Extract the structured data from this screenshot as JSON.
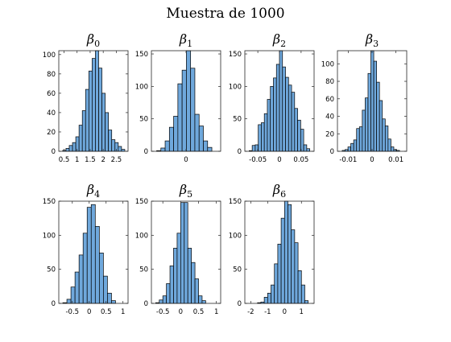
{
  "figure": {
    "title": "Muestra de 1000"
  },
  "style": {
    "bar_fill": "#6fa8dc",
    "bar_edge": "#000000"
  },
  "chart_data": [
    {
      "type": "bar",
      "title": "β0",
      "title_symbol": "β",
      "title_subscript": "0",
      "xlabel": "",
      "ylabel": "",
      "xlim": [
        0.3,
        2.95
      ],
      "ylim": [
        0,
        104
      ],
      "xticks": [
        0.5,
        1,
        1.5,
        2,
        2.5
      ],
      "xtick_labels": [
        "0.5",
        "1",
        "1.5",
        "2",
        "2.5"
      ],
      "yticks": [
        0,
        20,
        40,
        60,
        80,
        100
      ],
      "ytick_labels": [
        "0",
        "20",
        "40",
        "60",
        "80",
        "100"
      ],
      "bin_edges": [
        0.45,
        0.575,
        0.7,
        0.825,
        0.95,
        1.075,
        1.2,
        1.325,
        1.45,
        1.575,
        1.7,
        1.825,
        1.95,
        2.075,
        2.2,
        2.325,
        2.45,
        2.575,
        2.7,
        2.825
      ],
      "values": [
        1,
        3,
        6,
        9,
        15,
        27,
        42,
        64,
        83,
        96,
        104,
        86,
        60,
        40,
        22,
        12,
        9,
        5,
        2
      ]
    },
    {
      "type": "bar",
      "title": "β1",
      "title_symbol": "β",
      "title_subscript": "1",
      "xlabel": "",
      "ylabel": "",
      "xlim": [
        -0.53,
        0.53
      ],
      "ylim": [
        0,
        155
      ],
      "xticks": [
        0
      ],
      "xtick_labels": [
        "0"
      ],
      "yticks": [
        0,
        50,
        100,
        150
      ],
      "ytick_labels": [
        "0",
        "50",
        "100",
        "150"
      ],
      "bin_edges": [
        -0.45,
        -0.385,
        -0.32,
        -0.255,
        -0.19,
        -0.125,
        -0.06,
        0.005,
        0.07,
        0.135,
        0.2,
        0.265,
        0.33,
        0.395
      ],
      "values": [
        1,
        5,
        16,
        37,
        54,
        104,
        125,
        155,
        128,
        57,
        39,
        16,
        6
      ]
    },
    {
      "type": "bar",
      "title": "β2",
      "title_symbol": "β",
      "title_subscript": "2",
      "xlabel": "",
      "ylabel": "",
      "xlim": [
        -0.08,
        0.08
      ],
      "ylim": [
        0,
        155
      ],
      "xticks": [
        -0.05,
        0,
        0.05
      ],
      "xtick_labels": [
        "-0.05",
        "0",
        "0.05"
      ],
      "yticks": [
        0,
        50,
        100,
        150
      ],
      "ytick_labels": [
        "0",
        "50",
        "100",
        "150"
      ],
      "bin_edges": [
        -0.07,
        -0.063,
        -0.056,
        -0.049,
        -0.042,
        -0.035,
        -0.028,
        -0.021,
        -0.014,
        -0.007,
        0.0,
        0.007,
        0.014,
        0.021,
        0.028,
        0.035,
        0.042,
        0.049,
        0.056,
        0.063,
        0.07
      ],
      "values": [
        1,
        9,
        10,
        41,
        44,
        58,
        80,
        100,
        113,
        134,
        155,
        130,
        114,
        102,
        91,
        66,
        48,
        34,
        10,
        4
      ]
    },
    {
      "type": "bar",
      "title": "β3",
      "title_symbol": "β",
      "title_subscript": "3",
      "xlabel": "",
      "ylabel": "",
      "xlim": [
        -0.0145,
        0.0145
      ],
      "ylim": [
        0,
        115
      ],
      "xticks": [
        -0.01,
        0,
        0.01
      ],
      "xtick_labels": [
        "-0.01",
        "0",
        "0.01"
      ],
      "yticks": [
        0,
        20,
        40,
        60,
        80,
        100
      ],
      "ytick_labels": [
        "0",
        "20",
        "40",
        "60",
        "80",
        "100"
      ],
      "bin_edges": [
        -0.0125,
        -0.0113,
        -0.0101,
        -0.0089,
        -0.0077,
        -0.0065,
        -0.0053,
        -0.0041,
        -0.0029,
        -0.0017,
        -0.0005,
        0.0007,
        0.0019,
        0.0031,
        0.0043,
        0.0055,
        0.0067,
        0.0079,
        0.0091,
        0.0103,
        0.0115
      ],
      "values": [
        1,
        2,
        5,
        9,
        13,
        26,
        28,
        47,
        61,
        89,
        115,
        103,
        79,
        58,
        37,
        29,
        14,
        5,
        2,
        1
      ]
    },
    {
      "type": "bar",
      "title": "β4",
      "title_symbol": "β",
      "title_subscript": "4",
      "xlabel": "",
      "ylabel": "",
      "xlim": [
        -0.9,
        1.15
      ],
      "ylim": [
        0,
        150
      ],
      "xticks": [
        -0.5,
        0,
        0.5,
        1
      ],
      "xtick_labels": [
        "-0.5",
        "0",
        "0.5",
        "1"
      ],
      "yticks": [
        0,
        50,
        100,
        150
      ],
      "ytick_labels": [
        "0",
        "50",
        "100",
        "150"
      ],
      "bin_edges": [
        -0.78,
        -0.66,
        -0.54,
        -0.42,
        -0.3,
        -0.18,
        -0.06,
        0.06,
        0.18,
        0.3,
        0.42,
        0.54,
        0.66,
        0.78
      ],
      "values": [
        1,
        6,
        24,
        46,
        71,
        103,
        141,
        145,
        113,
        74,
        40,
        15,
        4
      ]
    },
    {
      "type": "bar",
      "title": "β5",
      "title_symbol": "β",
      "title_subscript": "5",
      "xlabel": "",
      "ylabel": "",
      "xlim": [
        -0.82,
        1.12
      ],
      "ylim": [
        0,
        150
      ],
      "xticks": [
        -0.5,
        0,
        0.5,
        1
      ],
      "xtick_labels": [
        "-0.5",
        "0",
        "0.5",
        "1"
      ],
      "yticks": [
        0,
        50,
        100,
        150
      ],
      "ytick_labels": [
        "0",
        "50",
        "100",
        "150"
      ],
      "bin_edges": [
        -0.7,
        -0.6,
        -0.5,
        -0.4,
        -0.3,
        -0.2,
        -0.1,
        0.0,
        0.1,
        0.2,
        0.3,
        0.4,
        0.5,
        0.6,
        0.7
      ],
      "values": [
        1,
        5,
        11,
        29,
        55,
        81,
        103,
        148,
        148,
        81,
        60,
        36,
        11,
        4
      ]
    },
    {
      "type": "bar",
      "title": "β6",
      "title_symbol": "β",
      "title_subscript": "6",
      "xlabel": "",
      "ylabel": "",
      "xlim": [
        -2.35,
        1.75
      ],
      "ylim": [
        0,
        150
      ],
      "xticks": [
        -2,
        -1,
        0,
        1
      ],
      "xtick_labels": [
        "-2",
        "-1",
        "0",
        "1"
      ],
      "yticks": [
        0,
        50,
        100,
        150
      ],
      "ytick_labels": [
        "0",
        "50",
        "100",
        "150"
      ],
      "bin_edges": [
        -1.6,
        -1.4,
        -1.2,
        -1.0,
        -0.8,
        -0.6,
        -0.4,
        -0.2,
        0.0,
        0.2,
        0.4,
        0.6,
        0.8,
        1.0,
        1.2,
        1.4
      ],
      "values": [
        1,
        2,
        9,
        15,
        27,
        58,
        87,
        125,
        150,
        145,
        108,
        89,
        48,
        27,
        4
      ]
    }
  ]
}
